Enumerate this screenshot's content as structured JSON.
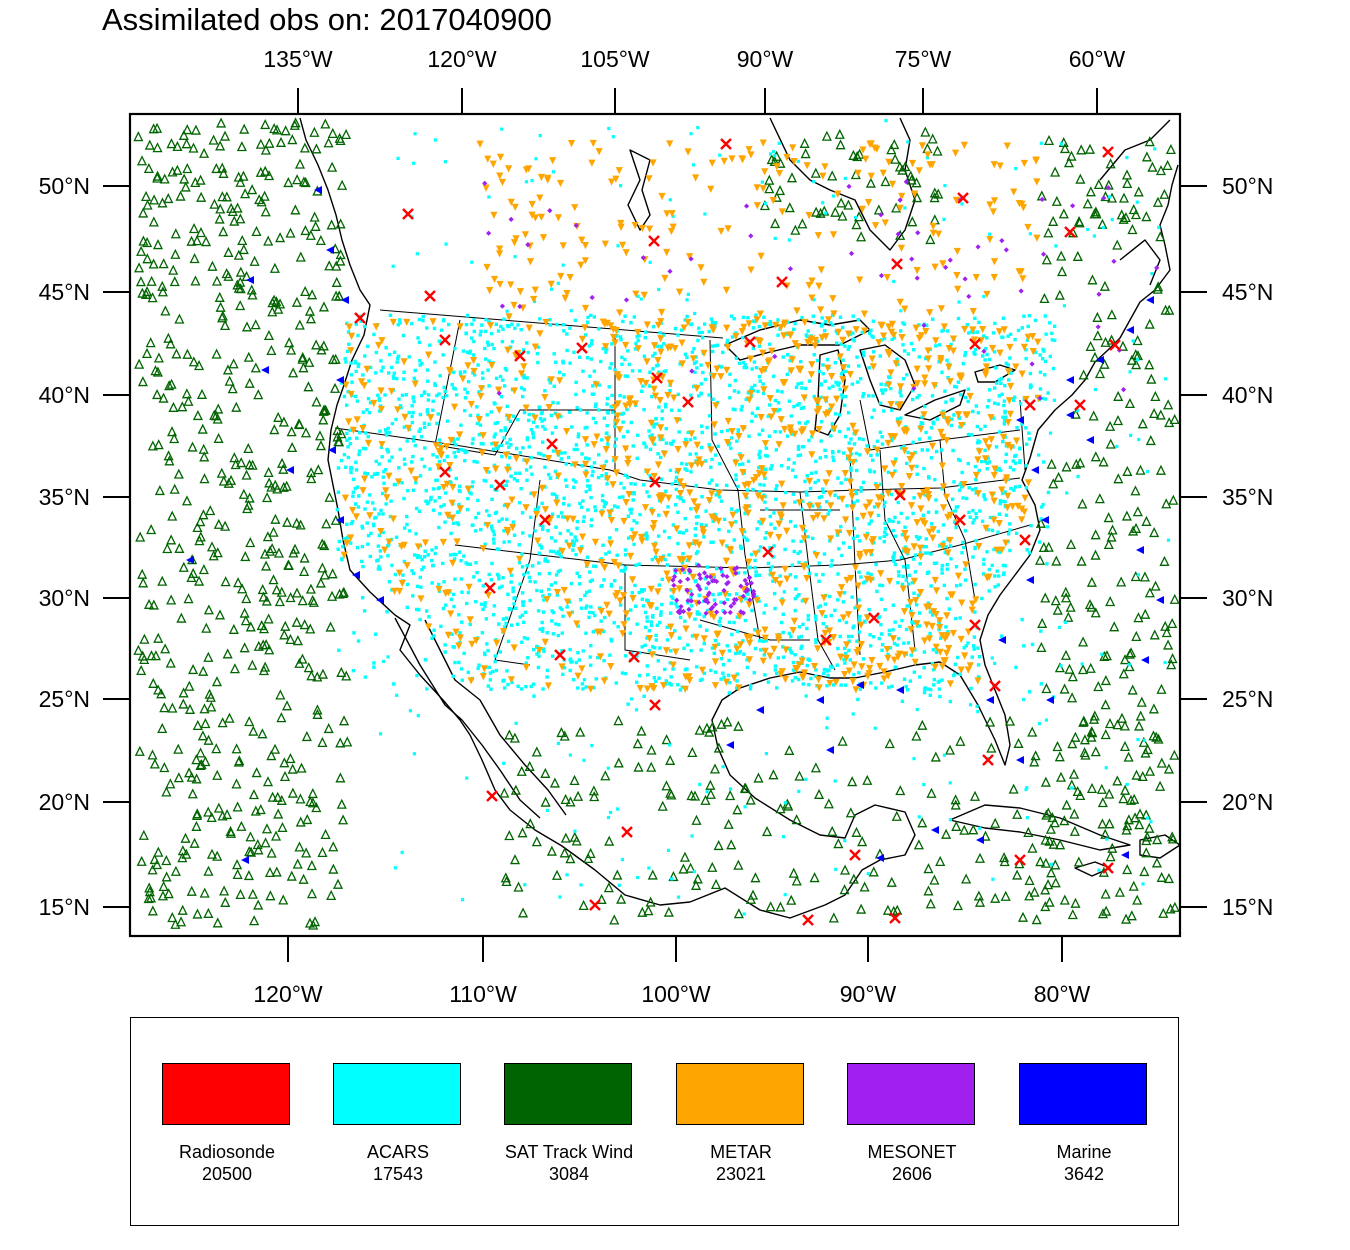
{
  "title": "Assimilated obs on: 2017040900",
  "top_lon_labels": [
    "135°W",
    "120°W",
    "105°W",
    "90°W",
    "75°W",
    "60°W"
  ],
  "bottom_lon_labels": [
    "120°W",
    "110°W",
    "100°W",
    "90°W",
    "80°W"
  ],
  "lat_labels": [
    "50°N",
    "45°N",
    "40°N",
    "35°N",
    "30°N",
    "25°N",
    "20°N",
    "15°N"
  ],
  "colors": {
    "radiosonde": "#ff0000",
    "acars": "#00ffff",
    "sat_track_wind": "#006400",
    "metar": "#ffa500",
    "mesonet": "#a020f0",
    "marine": "#0000ff",
    "coast": "#000000"
  },
  "legend": [
    {
      "name": "Radiosonde",
      "count": "20500",
      "color": "#ff0000"
    },
    {
      "name": "ACARS",
      "count": "17543",
      "color": "#00ffff"
    },
    {
      "name": "SAT Track Wind",
      "count": "3084",
      "color": "#006400"
    },
    {
      "name": "METAR",
      "count": "23021",
      "color": "#ffa500"
    },
    {
      "name": "MESONET",
      "count": "2606",
      "color": "#a020f0"
    },
    {
      "name": "Marine",
      "count": "3642",
      "color": "#0000ff"
    }
  ]
}
